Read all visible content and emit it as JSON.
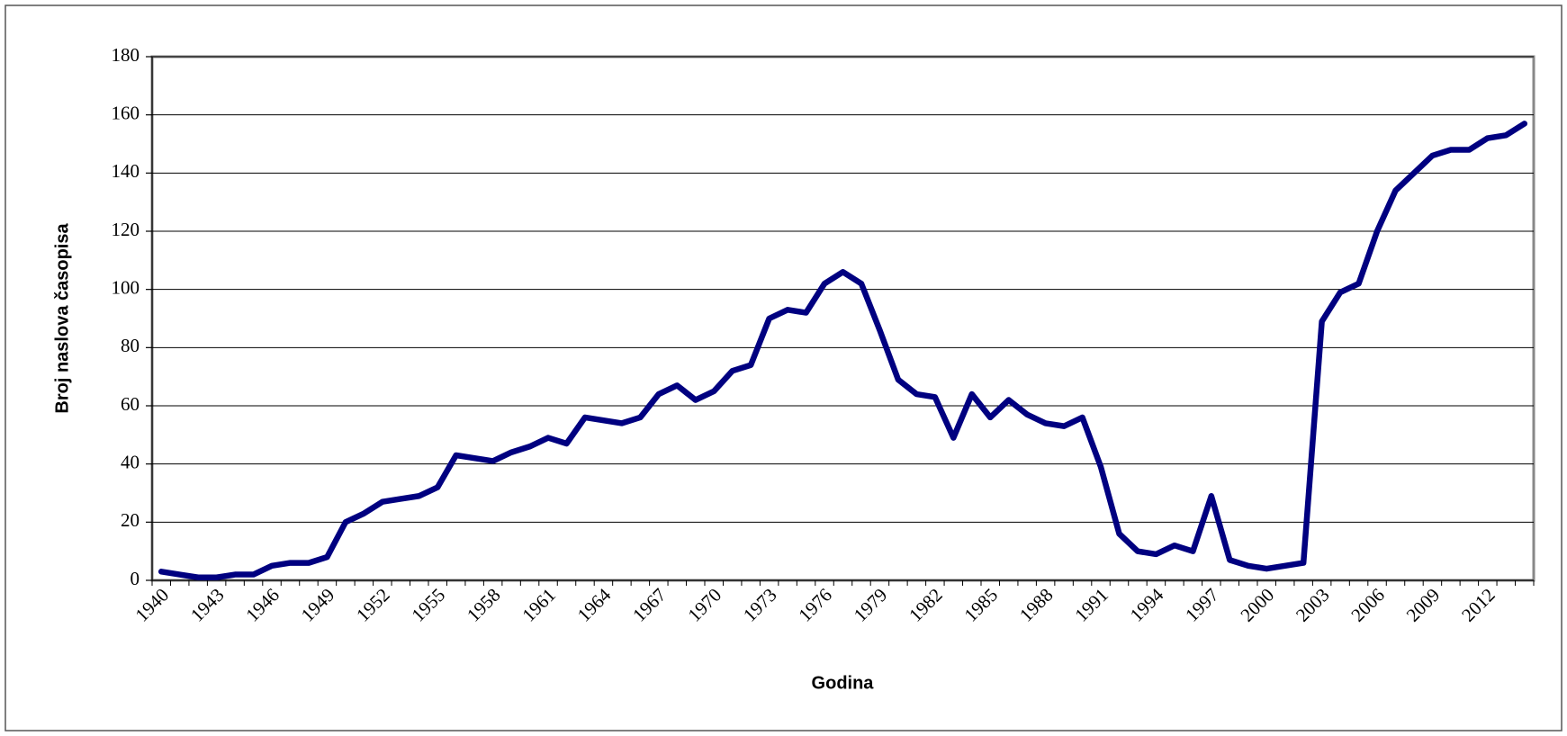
{
  "chart_data": {
    "type": "line",
    "x_label": "Godina",
    "y_label": "Broj naslova časopisa",
    "categories": [
      "1940",
      null,
      null,
      "1943",
      null,
      null,
      "1946",
      null,
      null,
      "1949",
      null,
      null,
      "1952",
      null,
      null,
      "1955",
      null,
      null,
      "1958",
      null,
      null,
      "1961",
      null,
      null,
      "1964",
      null,
      null,
      "1967",
      null,
      null,
      "1970",
      null,
      null,
      "1973",
      null,
      null,
      "1976",
      null,
      null,
      "1979",
      null,
      null,
      "1982",
      null,
      null,
      "1985",
      null,
      null,
      "1988",
      null,
      null,
      "1991",
      null,
      null,
      "1994",
      null,
      null,
      "1997",
      null,
      null,
      "2000",
      null,
      null,
      "2003",
      null,
      null,
      "2006",
      null,
      null,
      "2009",
      null,
      null,
      "2012",
      null,
      null
    ],
    "values": [
      3,
      2,
      1,
      1,
      2,
      2,
      5,
      6,
      6,
      8,
      20,
      23,
      27,
      28,
      29,
      32,
      43,
      42,
      41,
      44,
      46,
      49,
      47,
      56,
      55,
      54,
      56,
      64,
      67,
      62,
      65,
      72,
      74,
      90,
      93,
      92,
      102,
      106,
      102,
      86,
      69,
      64,
      63,
      49,
      64,
      56,
      62,
      57,
      54,
      53,
      56,
      39,
      16,
      10,
      9,
      12,
      10,
      29,
      7,
      5,
      4,
      5,
      6,
      89,
      99,
      102,
      120,
      134,
      140,
      146,
      148,
      148,
      152,
      153,
      157
    ],
    "color": "#000080",
    "ylim": [
      0,
      180
    ],
    "yticks": [
      0,
      20,
      40,
      60,
      80,
      100,
      120,
      140,
      160,
      180
    ],
    "grid": true
  }
}
